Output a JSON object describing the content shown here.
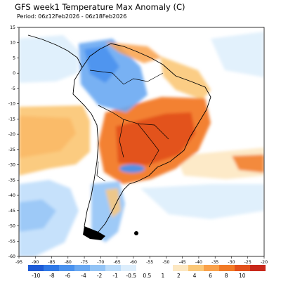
{
  "header": {
    "title": "GFS week1 Temperature Max Anomaly (C)",
    "period": "Period: 06z12Feb2026 - 06z18Feb2026"
  },
  "map": {
    "lon_range": [
      -95,
      -20
    ],
    "lat_range": [
      -60,
      15
    ],
    "lon_ticks": [
      "-95",
      "-90",
      "-85",
      "-80",
      "-75",
      "-70",
      "-65",
      "-60",
      "-55",
      "-50",
      "-45",
      "-40",
      "-35",
      "-30",
      "-25",
      "-20"
    ],
    "lat_ticks": [
      "15",
      "10",
      "5",
      "0",
      "-5",
      "-10",
      "-15",
      "-20",
      "-25",
      "-30",
      "-35",
      "-40",
      "-45",
      "-50",
      "-55",
      "-60"
    ],
    "grid": "off",
    "land_outline_color": "#000000"
  },
  "colorbar": {
    "labels": [
      "-10",
      "-8",
      "-6",
      "-4",
      "-2",
      "-1",
      "-0.5",
      "0.5",
      "1",
      "2",
      "4",
      "6",
      "8",
      "10"
    ],
    "colors": [
      "#1e5bd6",
      "#2f78e6",
      "#4a92ee",
      "#6aa9f2",
      "#93c4f6",
      "#bcdcfa",
      "#ddeefc",
      "#ffffff",
      "#fde8c2",
      "#fbc878",
      "#f9a14a",
      "#f27a26",
      "#e3501a",
      "#c8281a"
    ]
  }
}
